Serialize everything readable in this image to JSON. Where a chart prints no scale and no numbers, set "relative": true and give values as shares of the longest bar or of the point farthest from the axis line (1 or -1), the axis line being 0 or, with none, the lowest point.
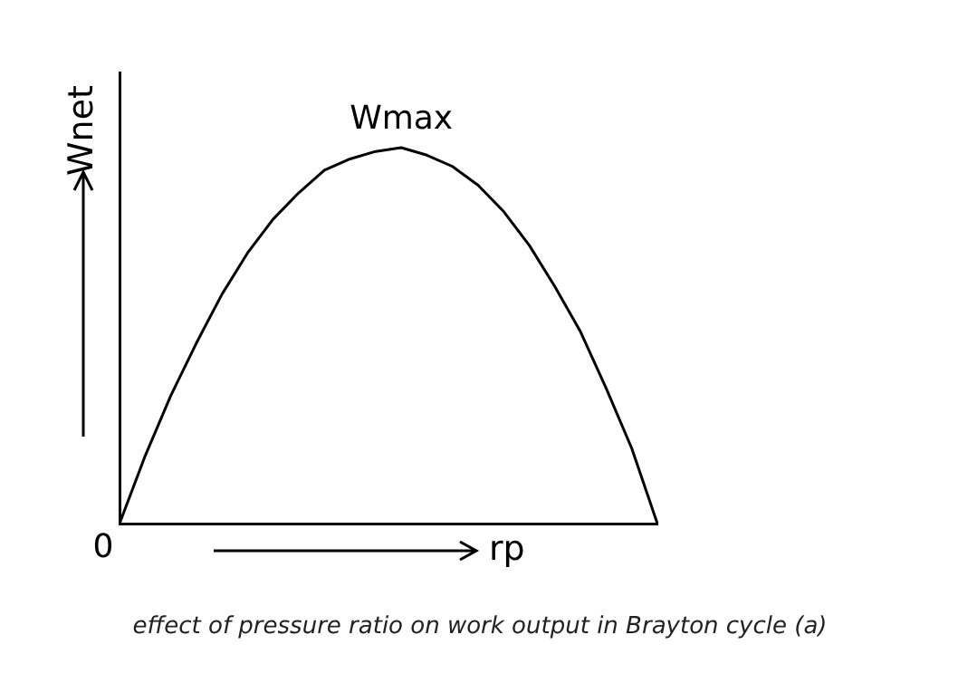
{
  "chart_data": {
    "type": "line",
    "relative": true,
    "xlabel": "rp",
    "ylabel": "Wnet",
    "categories": [
      null,
      null,
      null,
      null,
      null,
      null,
      null,
      null,
      null,
      null,
      null,
      null,
      null,
      null,
      null,
      null,
      null,
      null,
      null,
      null,
      null,
      null
    ],
    "series": [
      {
        "color": "#000000",
        "values": [
          0,
          0.18,
          0.34,
          0.48,
          0.61,
          0.72,
          0.81,
          0.88,
          0.94,
          0.97,
          0.99,
          1,
          0.98,
          0.95,
          0.9,
          0.83,
          0.74,
          0.63,
          0.51,
          0.36,
          0.2,
          0
        ]
      }
    ],
    "marker": "none",
    "grid": false,
    "legend": false,
    "annotations": [
      "Wmax",
      "0",
      "effect of pressure ratio on work output in Brayton cycle (a)"
    ]
  }
}
